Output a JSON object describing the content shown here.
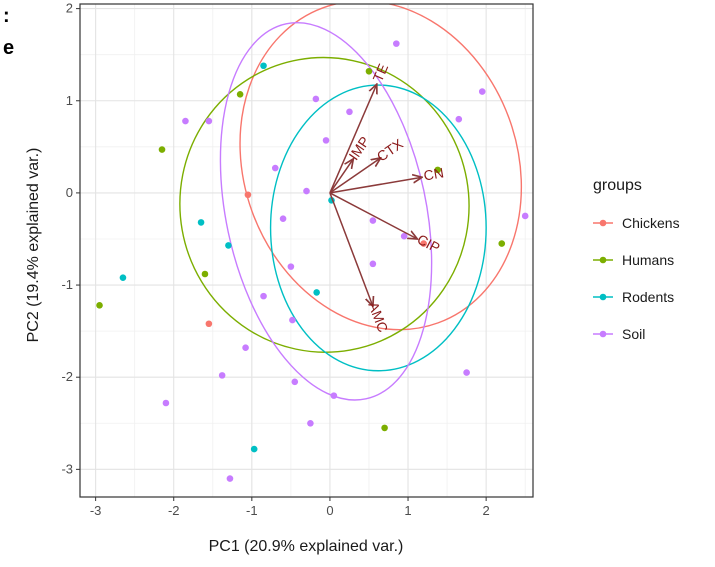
{
  "cropped_text": [
    ":",
    "e"
  ],
  "chart_data": {
    "type": "scatter",
    "xlabel": "PC1 (20.9% explained var.)",
    "ylabel": "PC2 (19.4% explained var.)",
    "xlim": [
      -3.2,
      2.6
    ],
    "ylim": [
      -3.3,
      2.05
    ],
    "x_ticks": [
      -3,
      -2,
      -1,
      0,
      1,
      2
    ],
    "y_ticks": [
      -3,
      -2,
      -1,
      0,
      1,
      2
    ],
    "grid": true,
    "legend": {
      "title": "groups",
      "placement": "right"
    },
    "series": [
      {
        "name": "Chickens",
        "color": "#F8766D",
        "points": [
          [
            -1.05,
            -0.02
          ],
          [
            -1.55,
            -1.42
          ],
          [
            1.2,
            -0.55
          ]
        ],
        "ellipse": {
          "cx": 0.65,
          "cy": 0.3,
          "rx": 1.75,
          "ry": 1.82,
          "angle": -20
        }
      },
      {
        "name": "Humans",
        "color": "#7CAE00",
        "points": [
          [
            -2.95,
            -1.22
          ],
          [
            -2.15,
            0.47
          ],
          [
            -1.15,
            1.07
          ],
          [
            0.5,
            1.32
          ],
          [
            1.38,
            0.25
          ],
          [
            -1.6,
            -0.88
          ],
          [
            2.2,
            -0.55
          ],
          [
            0.7,
            -2.55
          ]
        ],
        "ellipse": {
          "cx": -0.07,
          "cy": -0.13,
          "rx": 1.85,
          "ry": 1.6,
          "angle": -10
        }
      },
      {
        "name": "Rodents",
        "color": "#00BFC4",
        "points": [
          [
            -2.65,
            -0.92
          ],
          [
            -0.85,
            1.38
          ],
          [
            -1.65,
            -0.32
          ],
          [
            -1.3,
            -0.57
          ],
          [
            0.02,
            -0.08
          ],
          [
            -0.17,
            -1.08
          ],
          [
            -0.97,
            -2.78
          ]
        ],
        "ellipse": {
          "cx": 0.62,
          "cy": -0.38,
          "rx": 1.38,
          "ry": 1.55,
          "angle": 0
        }
      },
      {
        "name": "Soil",
        "color": "#C77CFF",
        "points": [
          [
            0.85,
            1.62
          ],
          [
            1.95,
            1.1
          ],
          [
            -1.85,
            0.78
          ],
          [
            -0.18,
            1.02
          ],
          [
            0.25,
            0.88
          ],
          [
            -1.55,
            0.78
          ],
          [
            -0.7,
            0.27
          ],
          [
            -0.3,
            0.02
          ],
          [
            -0.05,
            0.57
          ],
          [
            1.65,
            0.8
          ],
          [
            2.5,
            -0.25
          ],
          [
            -0.6,
            -0.28
          ],
          [
            -0.5,
            -0.8
          ],
          [
            0.55,
            -0.3
          ],
          [
            0.95,
            -0.47
          ],
          [
            0.55,
            -0.77
          ],
          [
            -0.85,
            -1.12
          ],
          [
            -0.48,
            -1.38
          ],
          [
            -1.08,
            -1.68
          ],
          [
            -1.38,
            -1.98
          ],
          [
            -0.45,
            -2.05
          ],
          [
            -2.1,
            -2.28
          ],
          [
            -0.25,
            -2.5
          ],
          [
            0.05,
            -2.2
          ],
          [
            1.75,
            -1.95
          ],
          [
            -1.28,
            -3.1
          ]
        ],
        "ellipse": {
          "cx": -0.05,
          "cy": -0.2,
          "rx": 1.28,
          "ry": 2.08,
          "angle": -12
        }
      }
    ],
    "variables": [
      {
        "name": "TE",
        "x": 0.6,
        "y": 1.18
      },
      {
        "name": "IMP",
        "x": 0.3,
        "y": 0.37
      },
      {
        "name": "CTX",
        "x": 0.65,
        "y": 0.38
      },
      {
        "name": "CN",
        "x": 1.18,
        "y": 0.17
      },
      {
        "name": "CIP",
        "x": 1.12,
        "y": -0.5
      },
      {
        "name": "AMC",
        "x": 0.55,
        "y": -1.23
      }
    ],
    "arrow_color": "#8B3A3A"
  }
}
